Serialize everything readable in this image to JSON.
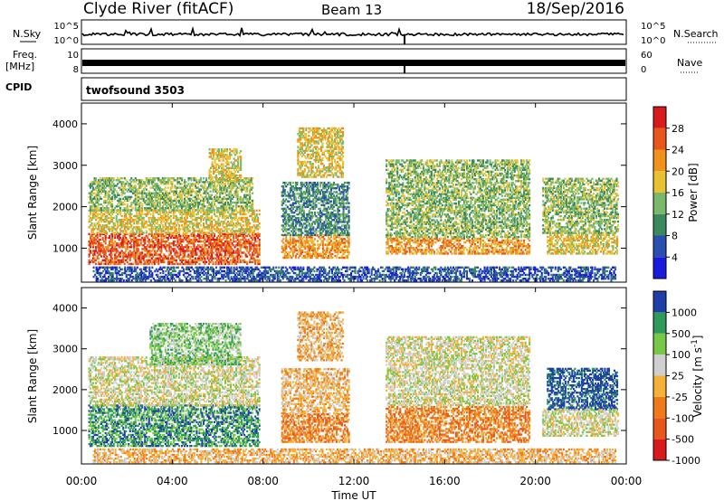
{
  "header": {
    "station": "Clyde River (fitACF)",
    "beam": "Beam 13",
    "date": "18/Sep/2016"
  },
  "status": {
    "nsky_label": "N.Sky",
    "nsky_ticks": [
      "10^5",
      "10^0"
    ],
    "nsearch_label": "N.Search",
    "nsearch_ticks": [
      "10^5",
      "10^0"
    ],
    "freq_label": "Freq.",
    "freq_unit": "[MHz]",
    "freq_ticks": [
      "10",
      "8"
    ],
    "nave_label": "Nave",
    "nave_ticks": [
      "60",
      "0"
    ],
    "cpid_label": "CPID",
    "cpid_value": "twofsound 3503"
  },
  "colors": {
    "power": [
      "#1a1adf",
      "#2a4fb0",
      "#3a8a5e",
      "#7ab86a",
      "#e8c230",
      "#f0921c",
      "#e8561c",
      "#d81a1a"
    ],
    "velocity": [
      "#d81a1a",
      "#e8561c",
      "#f07a18",
      "#f5b03a",
      "#cfcfcf",
      "#77c844",
      "#2e9a5a",
      "#1f3fa8"
    ]
  },
  "chart_data": [
    {
      "type": "heatmap",
      "name": "power",
      "ylabel": "Slant Range [km]",
      "yticks": [
        "1000",
        "2000",
        "3000",
        "4000"
      ],
      "ylim": [
        180,
        4500
      ],
      "xlim": [
        0,
        24
      ],
      "colorbar_label": "Power [dB]",
      "colorbar_ticks": [
        "4",
        "8",
        "12",
        "16",
        "20",
        "24",
        "28"
      ],
      "colorbar_range": [
        0,
        32
      ],
      "bands": [
        {
          "t0": 0.3,
          "t1": 7.8,
          "r0": 600,
          "r1": 1350,
          "level": 6
        },
        {
          "t0": 0.3,
          "t1": 7.8,
          "r0": 1350,
          "r1": 1900,
          "level": 4
        },
        {
          "t0": 0.3,
          "t1": 7.5,
          "r0": 1900,
          "r1": 2700,
          "level": 3
        },
        {
          "t0": 5.6,
          "t1": 7.0,
          "r0": 2600,
          "r1": 3400,
          "level": 4
        },
        {
          "t0": 8.8,
          "t1": 11.8,
          "r0": 750,
          "r1": 1300,
          "level": 5
        },
        {
          "t0": 8.8,
          "t1": 11.8,
          "r0": 1300,
          "r1": 2600,
          "level": 2
        },
        {
          "t0": 9.5,
          "t1": 11.5,
          "r0": 2700,
          "r1": 3900,
          "level": 4
        },
        {
          "t0": 13.4,
          "t1": 19.7,
          "r0": 850,
          "r1": 1250,
          "level": 5
        },
        {
          "t0": 13.4,
          "t1": 19.7,
          "r0": 1250,
          "r1": 3100,
          "level": 3
        },
        {
          "t0": 20.5,
          "t1": 23.6,
          "r0": 850,
          "r1": 1350,
          "level": 4
        },
        {
          "t0": 20.3,
          "t1": 23.6,
          "r0": 1350,
          "r1": 2700,
          "level": 3
        },
        {
          "t0": 0.5,
          "t1": 23.5,
          "r0": 200,
          "r1": 550,
          "level": 1
        }
      ]
    },
    {
      "type": "heatmap",
      "name": "velocity",
      "ylabel": "Slant Range [km]",
      "yticks": [
        "1000",
        "2000",
        "3000",
        "4000"
      ],
      "ylim": [
        180,
        4500
      ],
      "xlim": [
        0,
        24
      ],
      "colorbar_label": "Velocity [m s^-1]",
      "colorbar_ticks": [
        "1000",
        "500",
        "100",
        "25",
        "-25",
        "-100",
        "-500",
        "-1000"
      ],
      "xticks": [
        "00:00",
        "04:00",
        "08:00",
        "12:00",
        "16:00",
        "20:00",
        "00:00"
      ],
      "xlabel": "Time UT",
      "bands": [
        {
          "t0": 0.3,
          "t1": 7.8,
          "r0": 600,
          "r1": 1600,
          "level": 6
        },
        {
          "t0": 0.3,
          "t1": 7.8,
          "r0": 1600,
          "r1": 2800,
          "level": 4
        },
        {
          "t0": 3.0,
          "t1": 7.0,
          "r0": 2600,
          "r1": 3600,
          "level": 5
        },
        {
          "t0": 8.8,
          "t1": 11.8,
          "r0": 700,
          "r1": 1400,
          "level": 2
        },
        {
          "t0": 8.8,
          "t1": 11.8,
          "r0": 1400,
          "r1": 2500,
          "level": 3
        },
        {
          "t0": 9.5,
          "t1": 11.5,
          "r0": 2700,
          "r1": 3900,
          "level": 3
        },
        {
          "t0": 13.4,
          "t1": 19.7,
          "r0": 700,
          "r1": 1600,
          "level": 2
        },
        {
          "t0": 13.4,
          "t1": 19.7,
          "r0": 1600,
          "r1": 3300,
          "level": 4
        },
        {
          "t0": 20.5,
          "t1": 23.6,
          "r0": 1500,
          "r1": 2500,
          "level": 7
        },
        {
          "t0": 20.3,
          "t1": 23.6,
          "r0": 850,
          "r1": 1500,
          "level": 4
        },
        {
          "t0": 0.5,
          "t1": 23.5,
          "r0": 200,
          "r1": 550,
          "level": 3
        }
      ]
    }
  ]
}
